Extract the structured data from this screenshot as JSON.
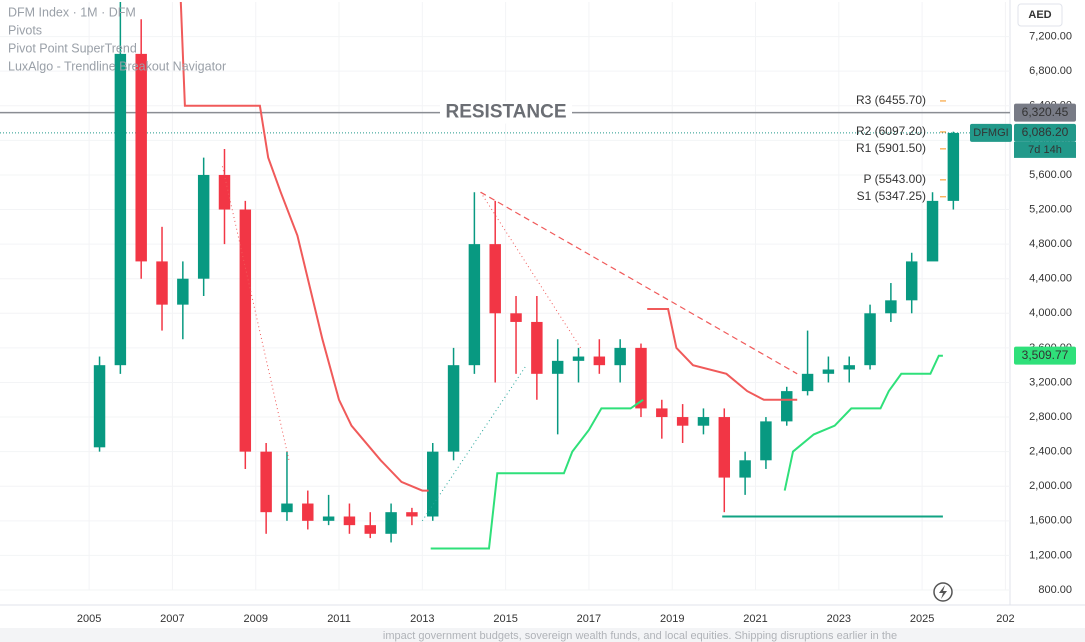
{
  "chart_data": {
    "type": "candlestick",
    "title": "DFM Index · 1M · DFM",
    "indicators": [
      "Pivots",
      "Pivot Point SuperTrend",
      "LuxAlgo - Trendline Breakout Navigator"
    ],
    "currency": "AED",
    "footer": "impact government budgets, sovereign wealth funds, and local equities. Shipping disruptions earlier in the",
    "up_color": "#089981",
    "down_color": "#f23645",
    "xlim": [
      2002.86,
      2027.11
    ],
    "ylim": [
      800,
      7600
    ],
    "xticks": [
      2005,
      2007,
      2009,
      2011,
      2013,
      2015,
      2017,
      2019,
      2021,
      2023,
      2025,
      {
        "value": 2027,
        "label": "202"
      }
    ],
    "yticks": [
      {
        "value": 800,
        "label": "800.00"
      },
      {
        "value": 1200,
        "label": "1,200.00"
      },
      {
        "value": 1600,
        "label": "1,600.00"
      },
      {
        "value": 2000,
        "label": "2,000.00"
      },
      {
        "value": 2400,
        "label": "2,400.00"
      },
      {
        "value": 2800,
        "label": "2,800.00"
      },
      {
        "value": 3200,
        "label": "3,200.00"
      },
      {
        "value": 3600,
        "label": "3,600.00"
      },
      {
        "value": 4000,
        "label": "4,000.00"
      },
      {
        "value": 4400,
        "label": "4,400.00"
      },
      {
        "value": 4800,
        "label": "4,800.00"
      },
      {
        "value": 5200,
        "label": "5,200.00"
      },
      {
        "value": 5600,
        "label": "5,600.00"
      },
      {
        "value": 6000,
        "label": "6,000.00"
      },
      {
        "value": 6400,
        "label": "6,400.00"
      },
      {
        "value": 6800,
        "label": "6,800.00"
      },
      {
        "value": 7200,
        "label": "7,200.00"
      }
    ],
    "x": [
      2005.0,
      2005.5,
      2006.0,
      2006.5,
      2007.0,
      2007.5,
      2008.0,
      2008.5,
      2009.0,
      2009.5,
      2010.0,
      2010.5,
      2011.0,
      2011.5,
      2012.0,
      2012.5,
      2013.0,
      2013.5,
      2014.0,
      2014.5,
      2015.0,
      2015.5,
      2016.0,
      2016.5,
      2017.0,
      2017.5,
      2018.0,
      2018.5,
      2019.0,
      2019.5,
      2020.0,
      2020.5,
      2021.0,
      2021.5,
      2022.0,
      2022.5,
      2023.0,
      2023.5,
      2024.0,
      2024.5,
      2025.0,
      2025.5
    ],
    "open": [
      2450,
      3400,
      7000,
      4600,
      4100,
      4400,
      5600,
      5200,
      2400,
      1700,
      1800,
      1600,
      1650,
      1550,
      1450,
      1700,
      1650,
      2400,
      3400,
      4800,
      4000,
      3900,
      3300,
      3450,
      3500,
      3400,
      3600,
      2900,
      2800,
      2700,
      2800,
      2100,
      2300,
      2750,
      3100,
      3300,
      3350,
      3400,
      4000,
      4150,
      4600,
      5300
    ],
    "high": [
      3500,
      7600,
      7400,
      5000,
      4600,
      5800,
      5900,
      5300,
      2500,
      2400,
      1950,
      1900,
      1800,
      1700,
      1800,
      1750,
      2500,
      3600,
      5400,
      5300,
      4200,
      4200,
      3700,
      3600,
      3700,
      3700,
      3650,
      3000,
      2950,
      2900,
      2900,
      2400,
      2800,
      3150,
      3800,
      3500,
      3500,
      4100,
      4350,
      4700,
      5400,
      6100
    ],
    "low": [
      2400,
      3300,
      4400,
      3800,
      3700,
      4200,
      4800,
      2200,
      1450,
      1600,
      1500,
      1550,
      1450,
      1400,
      1350,
      1550,
      1600,
      2300,
      3300,
      3200,
      3300,
      3000,
      2600,
      3200,
      3300,
      3200,
      2800,
      2550,
      2500,
      2600,
      1700,
      1900,
      2200,
      2700,
      3050,
      3200,
      3200,
      3350,
      3900,
      4000,
      4650,
      5200
    ],
    "close": [
      3400,
      7000,
      4600,
      4100,
      4400,
      5600,
      5200,
      2400,
      1700,
      1800,
      1600,
      1650,
      1550,
      1450,
      1700,
      1650,
      2400,
      3400,
      4800,
      4000,
      3900,
      3300,
      3450,
      3500,
      3400,
      3600,
      2900,
      2800,
      2700,
      2800,
      2100,
      2300,
      2750,
      3100,
      3300,
      3350,
      3400,
      4000,
      4150,
      4600,
      5300,
      6086.2
    ],
    "lines": [
      {
        "color": "#f05a5a",
        "width": 2,
        "dash": "",
        "x": [
          2007.2,
          2007.3,
          2009.1,
          2009.3,
          2009.6,
          2010.0,
          2010.3,
          2010.6,
          2011.0,
          2011.3,
          2012.0,
          2012.5,
          2013.0,
          2013.15,
          null,
          2018.4,
          2018.9,
          2019.1,
          2019.5,
          2020.3,
          2020.8,
          2021.2,
          2022.0
        ],
        "values": [
          7600,
          6400,
          6400,
          5800,
          5400,
          4900,
          4300,
          3700,
          3000,
          2700,
          2300,
          2050,
          1950,
          1950,
          null,
          4050,
          4050,
          3600,
          3400,
          3300,
          3100,
          3000,
          3000
        ]
      },
      {
        "color": "#2fe07a",
        "width": 2,
        "dash": "",
        "x": [
          2013.2,
          2014.6,
          2014.8,
          2016.4,
          2016.6,
          2017.0,
          2017.3,
          2018.0,
          2018.3,
          null,
          2021.7,
          2021.9,
          2022.4,
          2022.9,
          2023.3,
          2024.0,
          2024.2,
          2024.5,
          2025.2,
          2025.4,
          2025.5
        ],
        "values": [
          1280,
          1280,
          2150,
          2150,
          2400,
          2650,
          2900,
          2900,
          3000,
          null,
          1950,
          2400,
          2600,
          2700,
          2900,
          2900,
          3100,
          3300,
          3300,
          3510,
          3510
        ]
      },
      {
        "color": "#12a383",
        "width": 2,
        "dash": "",
        "x": [
          2020.2,
          2025.5
        ],
        "values": [
          1650,
          1650
        ]
      },
      {
        "color": "#f05a5a",
        "width": 1.2,
        "dash": "6 4",
        "x": [
          2014.4,
          2022.0
        ],
        "values": [
          5400,
          3300
        ]
      },
      {
        "color": "#f05a5a",
        "width": 1,
        "dash": "1 3",
        "x": [
          2014.4,
          2016.8
        ],
        "values": [
          5400,
          3600
        ]
      },
      {
        "color": "#f05a5a",
        "width": 1,
        "dash": "1 3",
        "x": [
          2008.2,
          2009.8
        ],
        "values": [
          5700,
          2300
        ]
      },
      {
        "color": "#26a69a",
        "width": 1,
        "dash": "1 3",
        "x": [
          2013.0,
          2015.5
        ],
        "values": [
          1600,
          3400
        ]
      }
    ],
    "pivots": [
      {
        "label": "R3 (6455.70)",
        "value": 6455.7
      },
      {
        "label": "R2 (6097.20)",
        "value": 6097.2
      },
      {
        "label": "R1 (5901.50)",
        "value": 5901.5
      },
      {
        "label": "P (5543.00)",
        "value": 5543.0
      },
      {
        "label": "S1 (5347.25)",
        "value": 5347.25
      }
    ],
    "resistance": {
      "label": "RESISTANCE",
      "value": 6320.45
    },
    "price_line": 6086.2,
    "price_tags": [
      {
        "label": "6,320.45",
        "value": 6320.45,
        "color": "#787b86"
      },
      {
        "label": "6,086.20",
        "value": 6086.2,
        "color": "#22998a"
      },
      {
        "label": "3,509.77",
        "value": 3509.77,
        "color": "#2fe07a"
      }
    ],
    "symbol_tag": "DFMGI",
    "countdown": "7d 14h"
  }
}
